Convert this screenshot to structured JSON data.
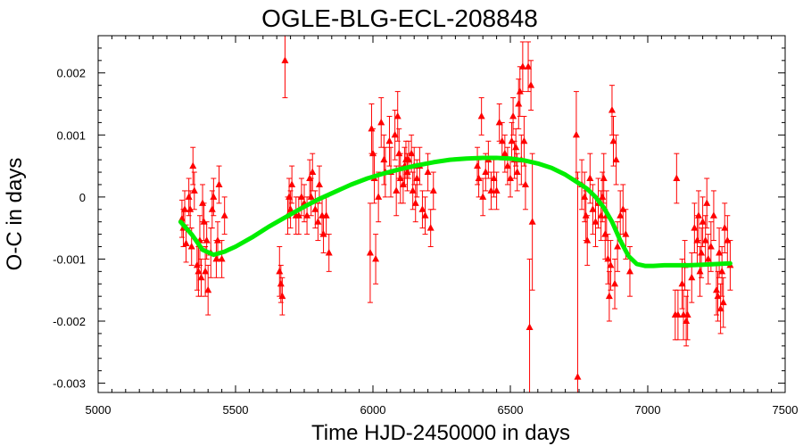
{
  "chart_data": {
    "type": "scatter",
    "title": "OGLE-BLG-ECL-208848",
    "xlabel": "Time HJD-2450000 in days",
    "ylabel": "O-C in days",
    "xlim": [
      5000,
      7500
    ],
    "ylim": [
      -0.00315,
      0.0026
    ],
    "x_ticks": [
      5000,
      5500,
      6000,
      6500,
      7000,
      7500
    ],
    "x_tick_labels": [
      "5000",
      "5500",
      "6000",
      "6500",
      "7000",
      "7500"
    ],
    "y_ticks": [
      0.002,
      0.001,
      0,
      -0.001,
      -0.002,
      -0.003
    ],
    "y_tick_labels": [
      "0.002",
      "0.001",
      "0",
      "-0.001",
      "-0.002",
      "-0.003"
    ],
    "grid": false,
    "legend": "none",
    "colors": {
      "points": "#ff0000",
      "fit": "#00ee00",
      "axes": "#000000"
    },
    "series": [
      {
        "type": "scatter_errorbars",
        "points": [
          {
            "x": 5305,
            "y": -0.00035,
            "e": 0.0003
          },
          {
            "x": 5310,
            "y": -0.0005,
            "e": 0.0003
          },
          {
            "x": 5315,
            "y": -0.0002,
            "e": 0.0003
          },
          {
            "x": 5320,
            "y": -0.00075,
            "e": 0.0003
          },
          {
            "x": 5330,
            "y": 0.0,
            "e": 0.0003
          },
          {
            "x": 5335,
            "y": -0.0002,
            "e": 0.0003
          },
          {
            "x": 5340,
            "y": -0.0008,
            "e": 0.0003
          },
          {
            "x": 5345,
            "y": 0.0005,
            "e": 0.0003
          },
          {
            "x": 5350,
            "y": 0.0001,
            "e": 0.0003
          },
          {
            "x": 5360,
            "y": -0.0011,
            "e": 0.0004
          },
          {
            "x": 5365,
            "y": -0.0012,
            "e": 0.0004
          },
          {
            "x": 5370,
            "y": -0.0007,
            "e": 0.0004
          },
          {
            "x": 5375,
            "y": -0.0013,
            "e": 0.0003
          },
          {
            "x": 5380,
            "y": -0.0001,
            "e": 0.0003
          },
          {
            "x": 5385,
            "y": -0.0004,
            "e": 0.0003
          },
          {
            "x": 5390,
            "y": -0.0012,
            "e": 0.0004
          },
          {
            "x": 5395,
            "y": -0.0007,
            "e": 0.0003
          },
          {
            "x": 5400,
            "y": -0.0015,
            "e": 0.0004
          },
          {
            "x": 5410,
            "y": -0.0009,
            "e": 0.0004
          },
          {
            "x": 5415,
            "y": -0.0002,
            "e": 0.0003
          },
          {
            "x": 5420,
            "y": 0.0,
            "e": 0.0003
          },
          {
            "x": 5430,
            "y": -0.001,
            "e": 0.0003
          },
          {
            "x": 5435,
            "y": -0.0007,
            "e": 0.0003
          },
          {
            "x": 5440,
            "y": 0.0002,
            "e": 0.0003
          },
          {
            "x": 5450,
            "y": -0.001,
            "e": 0.0003
          },
          {
            "x": 5460,
            "y": -0.0003,
            "e": 0.0003
          },
          {
            "x": 5660,
            "y": -0.0012,
            "e": 0.0004
          },
          {
            "x": 5665,
            "y": -0.0014,
            "e": 0.0003
          },
          {
            "x": 5670,
            "y": -0.0016,
            "e": 0.0003
          },
          {
            "x": 5680,
            "y": 0.0022,
            "e": 0.0006
          },
          {
            "x": 5690,
            "y": -0.0003,
            "e": 0.0003
          },
          {
            "x": 5695,
            "y": 0.0,
            "e": 0.0003
          },
          {
            "x": 5700,
            "y": -0.0002,
            "e": 0.0003
          },
          {
            "x": 5705,
            "y": 0.0002,
            "e": 0.0003
          },
          {
            "x": 5720,
            "y": -0.0003,
            "e": 0.0003
          },
          {
            "x": 5730,
            "y": -0.0003,
            "e": 0.0003
          },
          {
            "x": 5740,
            "y": 0.0,
            "e": 0.0003
          },
          {
            "x": 5750,
            "y": -0.0001,
            "e": 0.0003
          },
          {
            "x": 5760,
            "y": -0.0003,
            "e": 0.0003
          },
          {
            "x": 5770,
            "y": 0.0003,
            "e": 0.0003
          },
          {
            "x": 5775,
            "y": 0.0,
            "e": 0.0003
          },
          {
            "x": 5780,
            "y": 0.0004,
            "e": 0.0003
          },
          {
            "x": 5790,
            "y": -0.0002,
            "e": 0.0003
          },
          {
            "x": 5800,
            "y": -0.0004,
            "e": 0.0003
          },
          {
            "x": 5805,
            "y": 0.0002,
            "e": 0.0003
          },
          {
            "x": 5815,
            "y": -0.0003,
            "e": 0.0003
          },
          {
            "x": 5820,
            "y": -0.0006,
            "e": 0.0003
          },
          {
            "x": 5830,
            "y": -0.0003,
            "e": 0.0003
          },
          {
            "x": 5840,
            "y": -0.0009,
            "e": 0.0003
          },
          {
            "x": 5990,
            "y": -0.0009,
            "e": 0.0008
          },
          {
            "x": 5995,
            "y": 0.0011,
            "e": 0.0004
          },
          {
            "x": 6000,
            "y": 0.0007,
            "e": 0.0004
          },
          {
            "x": 6005,
            "y": 0.0003,
            "e": 0.0004
          },
          {
            "x": 6010,
            "y": -0.001,
            "e": 0.0004
          },
          {
            "x": 6020,
            "y": 0.0,
            "e": 0.0004
          },
          {
            "x": 6030,
            "y": 0.0012,
            "e": 0.0004
          },
          {
            "x": 6040,
            "y": 0.0006,
            "e": 0.0004
          },
          {
            "x": 6045,
            "y": 0.0004,
            "e": 0.0004
          },
          {
            "x": 6060,
            "y": 0.0009,
            "e": 0.0004
          },
          {
            "x": 6065,
            "y": 0.0004,
            "e": 0.0004
          },
          {
            "x": 6080,
            "y": 0.001,
            "e": 0.0004
          },
          {
            "x": 6085,
            "y": 0.0001,
            "e": 0.0004
          },
          {
            "x": 6090,
            "y": 0.0013,
            "e": 0.0004
          },
          {
            "x": 6095,
            "y": 0.0007,
            "e": 0.0004
          },
          {
            "x": 6100,
            "y": 0.0003,
            "e": 0.0004
          },
          {
            "x": 6110,
            "y": 0.0002,
            "e": 0.0003
          },
          {
            "x": 6115,
            "y": 0.0005,
            "e": 0.0003
          },
          {
            "x": 6120,
            "y": 0.0006,
            "e": 0.0003
          },
          {
            "x": 6125,
            "y": 0.0004,
            "e": 0.0003
          },
          {
            "x": 6130,
            "y": 0.0006,
            "e": 0.0003
          },
          {
            "x": 6140,
            "y": 0.0007,
            "e": 0.0003
          },
          {
            "x": 6145,
            "y": 0.0001,
            "e": 0.0003
          },
          {
            "x": 6150,
            "y": 0.0005,
            "e": 0.0003
          },
          {
            "x": 6155,
            "y": -0.0001,
            "e": 0.0003
          },
          {
            "x": 6160,
            "y": 0.0003,
            "e": 0.0003
          },
          {
            "x": 6170,
            "y": 0.0005,
            "e": 0.0003
          },
          {
            "x": 6180,
            "y": -0.0002,
            "e": 0.0003
          },
          {
            "x": 6190,
            "y": -0.0003,
            "e": 0.0003
          },
          {
            "x": 6200,
            "y": 0.0004,
            "e": 0.0003
          },
          {
            "x": 6210,
            "y": -0.0005,
            "e": 0.0003
          },
          {
            "x": 6220,
            "y": 0.0001,
            "e": 0.0003
          },
          {
            "x": 6380,
            "y": 0.0005,
            "e": 0.0003
          },
          {
            "x": 6385,
            "y": 0.0003,
            "e": 0.0003
          },
          {
            "x": 6395,
            "y": 0.0013,
            "e": 0.0003
          },
          {
            "x": 6400,
            "y": 0.0,
            "e": 0.0003
          },
          {
            "x": 6410,
            "y": 0.0004,
            "e": 0.0003
          },
          {
            "x": 6420,
            "y": 0.0006,
            "e": 0.0003
          },
          {
            "x": 6430,
            "y": 0.0001,
            "e": 0.0003
          },
          {
            "x": 6440,
            "y": 0.0003,
            "e": 0.0003
          },
          {
            "x": 6450,
            "y": 0.0001,
            "e": 0.0003
          },
          {
            "x": 6460,
            "y": 0.0012,
            "e": 0.0003
          },
          {
            "x": 6470,
            "y": 0.0009,
            "e": 0.0003
          },
          {
            "x": 6480,
            "y": 0.0007,
            "e": 0.0003
          },
          {
            "x": 6490,
            "y": 0.0005,
            "e": 0.0003
          },
          {
            "x": 6500,
            "y": 0.0003,
            "e": 0.0003
          },
          {
            "x": 6505,
            "y": 0.0009,
            "e": 0.0003
          },
          {
            "x": 6510,
            "y": 0.0013,
            "e": 0.0003
          },
          {
            "x": 6515,
            "y": 0.0006,
            "e": 0.0003
          },
          {
            "x": 6520,
            "y": 0.0008,
            "e": 0.0003
          },
          {
            "x": 6525,
            "y": 0.0004,
            "e": 0.0003
          },
          {
            "x": 6530,
            "y": 0.0015,
            "e": 0.0004
          },
          {
            "x": 6535,
            "y": 0.0017,
            "e": 0.0004
          },
          {
            "x": 6540,
            "y": 0.0006,
            "e": 0.0004
          },
          {
            "x": 6545,
            "y": 0.0021,
            "e": 0.0004
          },
          {
            "x": 6550,
            "y": 0.0009,
            "e": 0.0004
          },
          {
            "x": 6555,
            "y": 0.0002,
            "e": 0.0004
          },
          {
            "x": 6565,
            "y": 0.0021,
            "e": 0.0004
          },
          {
            "x": 6570,
            "y": -0.0021,
            "e": 0.0011
          },
          {
            "x": 6575,
            "y": 0.0018,
            "e": 0.0004
          },
          {
            "x": 6580,
            "y": -0.0004,
            "e": 0.0011
          },
          {
            "x": 6740,
            "y": 0.001,
            "e": 0.0007
          },
          {
            "x": 6745,
            "y": -0.0029,
            "e": 0.0033
          },
          {
            "x": 6760,
            "y": 0.0002,
            "e": 0.0004
          },
          {
            "x": 6770,
            "y": 0.0,
            "e": 0.0004
          },
          {
            "x": 6775,
            "y": -0.0003,
            "e": 0.0004
          },
          {
            "x": 6780,
            "y": -0.0007,
            "e": 0.0004
          },
          {
            "x": 6790,
            "y": 0.0003,
            "e": 0.0004
          },
          {
            "x": 6800,
            "y": -0.0002,
            "e": 0.0004
          },
          {
            "x": 6810,
            "y": -0.0004,
            "e": 0.0004
          },
          {
            "x": 6820,
            "y": -0.0001,
            "e": 0.0004
          },
          {
            "x": 6830,
            "y": -0.0003,
            "e": 0.0004
          },
          {
            "x": 6835,
            "y": 0.0,
            "e": 0.0004
          },
          {
            "x": 6840,
            "y": 0.0003,
            "e": 0.0004
          },
          {
            "x": 6845,
            "y": -0.0006,
            "e": 0.0004
          },
          {
            "x": 6850,
            "y": -0.0003,
            "e": 0.0004
          },
          {
            "x": 6855,
            "y": -0.001,
            "e": 0.0004
          },
          {
            "x": 6860,
            "y": -0.0016,
            "e": 0.0004
          },
          {
            "x": 6865,
            "y": -0.0011,
            "e": 0.0004
          },
          {
            "x": 6870,
            "y": 0.0014,
            "e": 0.0004
          },
          {
            "x": 6875,
            "y": 0.0009,
            "e": 0.0004
          },
          {
            "x": 6880,
            "y": -0.0014,
            "e": 0.0004
          },
          {
            "x": 6885,
            "y": 0.0006,
            "e": 0.0004
          },
          {
            "x": 6890,
            "y": -0.0008,
            "e": 0.0004
          },
          {
            "x": 6900,
            "y": -0.0003,
            "e": 0.0004
          },
          {
            "x": 6910,
            "y": -0.0002,
            "e": 0.0004
          },
          {
            "x": 6920,
            "y": -0.0006,
            "e": 0.0004
          },
          {
            "x": 6935,
            "y": -0.0012,
            "e": 0.0004
          },
          {
            "x": 7100,
            "y": -0.0019,
            "e": 0.0004
          },
          {
            "x": 7105,
            "y": 0.0003,
            "e": 0.0004
          },
          {
            "x": 7110,
            "y": -0.0019,
            "e": 0.0004
          },
          {
            "x": 7125,
            "y": -0.0014,
            "e": 0.0004
          },
          {
            "x": 7130,
            "y": -0.0019,
            "e": 0.0004
          },
          {
            "x": 7135,
            "y": -0.0011,
            "e": 0.0004
          },
          {
            "x": 7140,
            "y": -0.002,
            "e": 0.0004
          },
          {
            "x": 7145,
            "y": -0.0019,
            "e": 0.0004
          },
          {
            "x": 7160,
            "y": -0.0013,
            "e": 0.0004
          },
          {
            "x": 7170,
            "y": -0.0005,
            "e": 0.0004
          },
          {
            "x": 7180,
            "y": -0.0007,
            "e": 0.0004
          },
          {
            "x": 7185,
            "y": -0.0003,
            "e": 0.0004
          },
          {
            "x": 7190,
            "y": -0.0012,
            "e": 0.0004
          },
          {
            "x": 7195,
            "y": -0.0009,
            "e": 0.0004
          },
          {
            "x": 7200,
            "y": -0.0004,
            "e": 0.0004
          },
          {
            "x": 7210,
            "y": -0.0007,
            "e": 0.0004
          },
          {
            "x": 7215,
            "y": -0.0001,
            "e": 0.0004
          },
          {
            "x": 7220,
            "y": -0.001,
            "e": 0.0004
          },
          {
            "x": 7230,
            "y": -0.0008,
            "e": 0.0004
          },
          {
            "x": 7240,
            "y": -0.0003,
            "e": 0.0004
          },
          {
            "x": 7250,
            "y": -0.0015,
            "e": 0.0004
          },
          {
            "x": 7255,
            "y": -0.0016,
            "e": 0.0004
          },
          {
            "x": 7260,
            "y": -0.0009,
            "e": 0.0004
          },
          {
            "x": 7265,
            "y": -0.0018,
            "e": 0.0004
          },
          {
            "x": 7270,
            "y": -0.0012,
            "e": 0.0004
          },
          {
            "x": 7275,
            "y": -0.0017,
            "e": 0.0004
          },
          {
            "x": 7280,
            "y": -0.0005,
            "e": 0.0004
          },
          {
            "x": 7290,
            "y": -0.0007,
            "e": 0.0004
          },
          {
            "x": 7300,
            "y": -0.0011,
            "e": 0.0004
          }
        ]
      },
      {
        "type": "line",
        "x": [
          5300,
          5340,
          5380,
          5420,
          5460,
          5500,
          5560,
          5620,
          5680,
          5740,
          5800,
          5860,
          5920,
          5980,
          6040,
          6100,
          6160,
          6220,
          6280,
          6340,
          6400,
          6450,
          6500,
          6550,
          6600,
          6650,
          6700,
          6750,
          6780,
          6810,
          6840,
          6870,
          6900,
          6930,
          6960,
          6990,
          7020,
          7060,
          7100,
          7150,
          7200,
          7250,
          7300
        ],
        "y": [
          -0.0004,
          -0.0006,
          -0.00085,
          -0.00093,
          -0.00088,
          -0.0008,
          -0.00065,
          -0.00048,
          -0.00033,
          -0.00018,
          -4e-05,
          8e-05,
          0.0002,
          0.0003,
          0.00038,
          0.00045,
          0.00051,
          0.00056,
          0.0006,
          0.00062,
          0.00063,
          0.00063,
          0.00062,
          0.00059,
          0.00054,
          0.00047,
          0.00036,
          0.00022,
          0.00013,
          0.0,
          -0.00017,
          -0.0004,
          -0.0007,
          -0.00095,
          -0.00108,
          -0.00111,
          -0.00111,
          -0.0011,
          -0.0011,
          -0.0011,
          -0.00109,
          -0.00108,
          -0.00107
        ]
      }
    ]
  }
}
